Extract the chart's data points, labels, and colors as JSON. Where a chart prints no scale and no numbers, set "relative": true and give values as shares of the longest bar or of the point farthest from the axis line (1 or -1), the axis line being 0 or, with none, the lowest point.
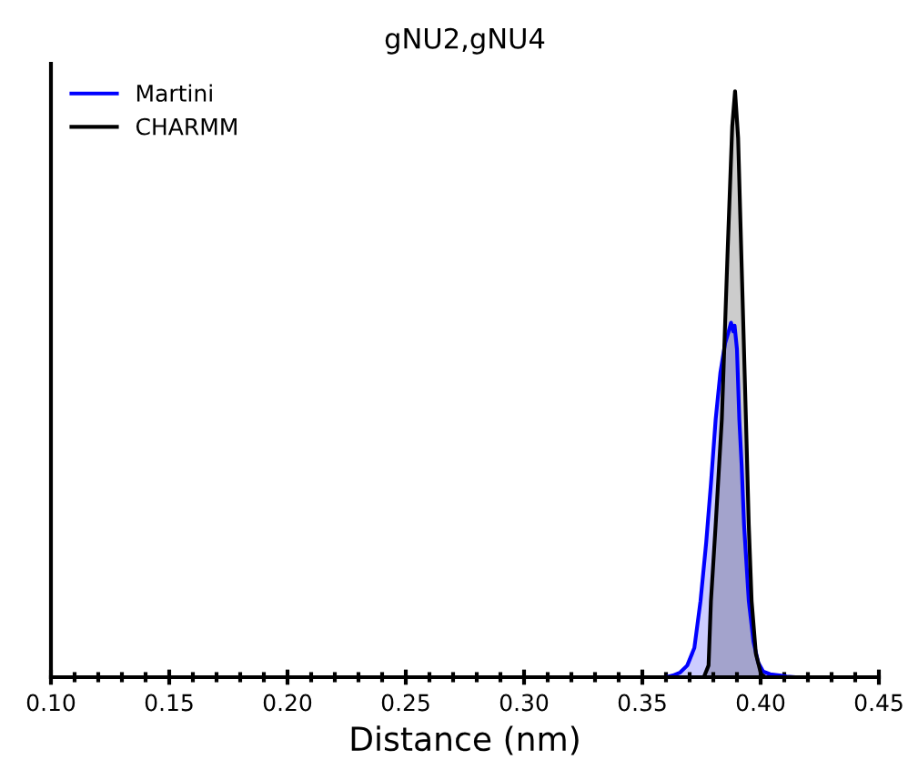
{
  "chart_data": {
    "type": "area",
    "title": "gNU2,gNU4",
    "xlabel": "Distance (nm)",
    "relative": true,
    "legend": "top left",
    "grid": false,
    "xlim": [
      0.1,
      0.45
    ],
    "xticks": [
      {
        "value": 0.1,
        "label": "0.10"
      },
      {
        "value": 0.15,
        "label": "0.15"
      },
      {
        "value": 0.2,
        "label": "0.20"
      },
      {
        "value": 0.25,
        "label": "0.25"
      },
      {
        "value": 0.3,
        "label": "0.30"
      },
      {
        "value": 0.35,
        "label": "0.35"
      },
      {
        "value": 0.4,
        "label": "0.40"
      },
      {
        "value": 0.45,
        "label": "0.45"
      }
    ],
    "series": [
      {
        "name": "Martini",
        "color": "#0000ff",
        "x": [
          0.36,
          0.363,
          0.366,
          0.369,
          0.372,
          0.3746,
          0.377,
          0.379,
          0.381,
          0.383,
          0.385,
          0.3865,
          0.3875,
          0.3885,
          0.389,
          0.39,
          0.391,
          0.392,
          0.393,
          0.395,
          0.397,
          0.399,
          0.401,
          0.404,
          0.408,
          0.411,
          0.414
        ],
        "values": [
          0,
          0.003,
          0.008,
          0.02,
          0.05,
          0.13,
          0.23,
          0.33,
          0.44,
          0.52,
          0.57,
          0.59,
          0.605,
          0.59,
          0.6,
          0.56,
          0.44,
          0.36,
          0.26,
          0.13,
          0.06,
          0.025,
          0.01,
          0.005,
          0.003,
          0.001,
          0
        ]
      },
      {
        "name": "CHARMM",
        "color": "#000000",
        "x": [
          0.376,
          0.378,
          0.379,
          0.381,
          0.3836,
          0.386,
          0.388,
          0.3892,
          0.3905,
          0.392,
          0.3938,
          0.395,
          0.3962,
          0.398,
          0.4002,
          0.402
        ],
        "values": [
          0,
          0.02,
          0.13,
          0.26,
          0.44,
          0.72,
          0.94,
          1.0,
          0.92,
          0.7,
          0.44,
          0.26,
          0.13,
          0.04,
          0.005,
          0
        ]
      }
    ]
  }
}
